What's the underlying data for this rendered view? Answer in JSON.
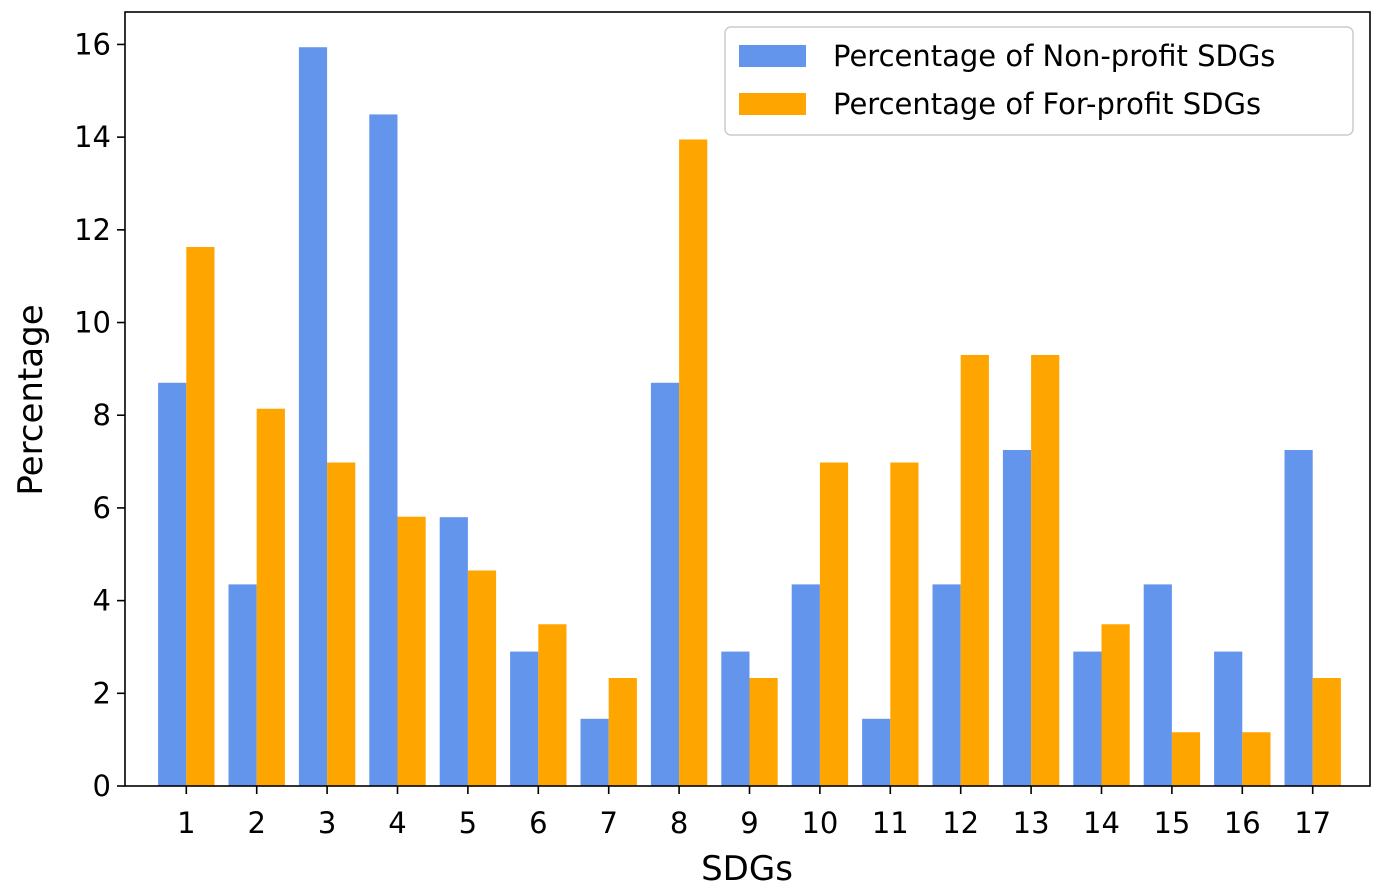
{
  "chart_data": {
    "type": "bar",
    "title": "",
    "xlabel": "SDGs",
    "ylabel": "Percentage",
    "categories": [
      "1",
      "2",
      "3",
      "4",
      "5",
      "6",
      "7",
      "8",
      "9",
      "10",
      "11",
      "12",
      "13",
      "14",
      "15",
      "16",
      "17"
    ],
    "series": [
      {
        "name": "Percentage of Non-profit SDGs",
        "color": "#6495ED",
        "values": [
          8.7,
          4.35,
          15.94,
          14.49,
          5.8,
          2.9,
          1.45,
          8.7,
          2.9,
          4.35,
          1.45,
          4.35,
          7.25,
          2.9,
          4.35,
          2.9,
          7.25
        ]
      },
      {
        "name": "Percentage of For-profit SDGs",
        "color": "#FFA500",
        "values": [
          11.63,
          8.14,
          6.98,
          5.81,
          4.65,
          3.49,
          2.33,
          13.95,
          2.33,
          6.98,
          6.98,
          9.3,
          9.3,
          3.49,
          1.16,
          1.16,
          2.33
        ]
      }
    ],
    "ylim": [
      0,
      16.7
    ],
    "yticks": [
      0,
      2,
      4,
      6,
      8,
      10,
      12,
      14,
      16
    ],
    "legend_position": "top-right",
    "grid": false
  }
}
